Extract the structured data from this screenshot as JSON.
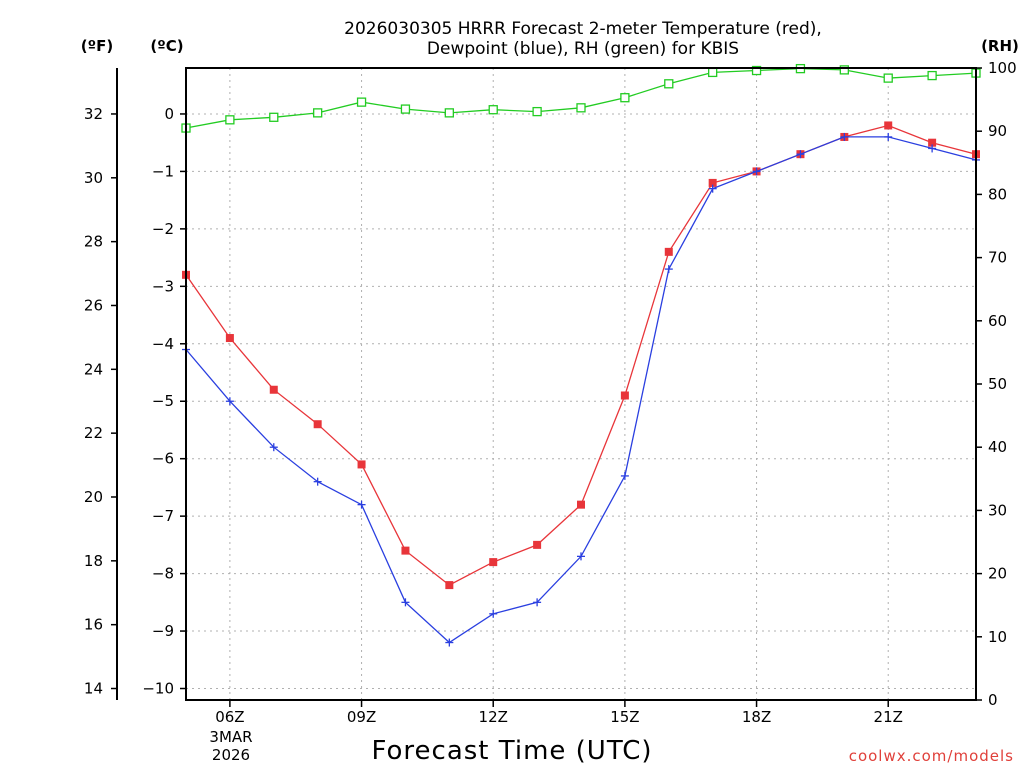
{
  "chart_data": {
    "type": "line",
    "title": [
      "2026030305 HRRR Forecast 2-meter Temperature (red),",
      "Dewpoint (blue), RH (green) for KBIS"
    ],
    "xlabel": "Forecast Time (UTC)",
    "date_label": [
      "3MAR",
      "2026"
    ],
    "credit": "coolwx.com/models",
    "units": {
      "f": "(ºF)",
      "c": "(ºC)",
      "rh": "(RH)"
    },
    "x_hours": [
      5,
      6,
      7,
      8,
      9,
      10,
      11,
      12,
      13,
      14,
      15,
      16,
      17,
      18,
      19,
      20,
      21,
      22,
      23
    ],
    "x_tick_hours": [
      6,
      9,
      12,
      15,
      18,
      21
    ],
    "x_tick_labels": [
      "06Z",
      "09Z",
      "12Z",
      "15Z",
      "18Z",
      "21Z"
    ],
    "xlim": [
      5,
      23
    ],
    "y_left_c": {
      "range": [
        -10.2,
        0.8
      ],
      "ticks": [
        0,
        -1,
        -2,
        -3,
        -4,
        -5,
        -6,
        -7,
        -8,
        -9,
        -10
      ],
      "labels": [
        "0",
        "−1",
        "−2",
        "−3",
        "−4",
        "−5",
        "−6",
        "−7",
        "−8",
        "−9",
        "−10"
      ]
    },
    "y_left_f": {
      "ticks": [
        14,
        16,
        18,
        20,
        22,
        24,
        26,
        28,
        30,
        32
      ],
      "labels": [
        "14",
        "16",
        "18",
        "20",
        "22",
        "24",
        "26",
        "28",
        "30",
        "32"
      ]
    },
    "y_right_rh": {
      "range": [
        0,
        100
      ],
      "ticks": [
        0,
        10,
        20,
        30,
        40,
        50,
        60,
        70,
        80,
        90,
        100
      ],
      "labels": [
        "0",
        "10",
        "20",
        "30",
        "40",
        "50",
        "60",
        "70",
        "80",
        "90",
        "100"
      ]
    },
    "series": [
      {
        "name": "Temperature",
        "unit": "C",
        "color": "#e8353a",
        "marker": "square",
        "values": [
          -2.8,
          -3.9,
          -4.8,
          -5.4,
          -6.1,
          -7.6,
          -8.2,
          -7.8,
          -7.5,
          -6.8,
          -4.9,
          -2.4,
          -1.2,
          -1.0,
          -0.7,
          -0.4,
          -0.2,
          -0.5,
          -0.7
        ]
      },
      {
        "name": "Dewpoint",
        "unit": "C",
        "color": "#2a3fe0",
        "marker": "plus",
        "values": [
          -4.1,
          -5.0,
          -5.8,
          -6.4,
          -6.8,
          -8.5,
          -9.2,
          -8.7,
          -8.5,
          -7.7,
          -6.3,
          -2.7,
          -1.3,
          -1.0,
          -0.7,
          -0.4,
          -0.4,
          -0.6,
          -0.8
        ]
      },
      {
        "name": "RH",
        "unit": "%",
        "color": "#22cc22",
        "marker": "open-square",
        "values": [
          90.5,
          91.8,
          92.2,
          92.9,
          94.6,
          93.5,
          92.9,
          93.4,
          93.1,
          93.7,
          95.3,
          97.5,
          99.3,
          99.6,
          99.9,
          99.7,
          98.4,
          98.8,
          99.2
        ]
      }
    ]
  }
}
